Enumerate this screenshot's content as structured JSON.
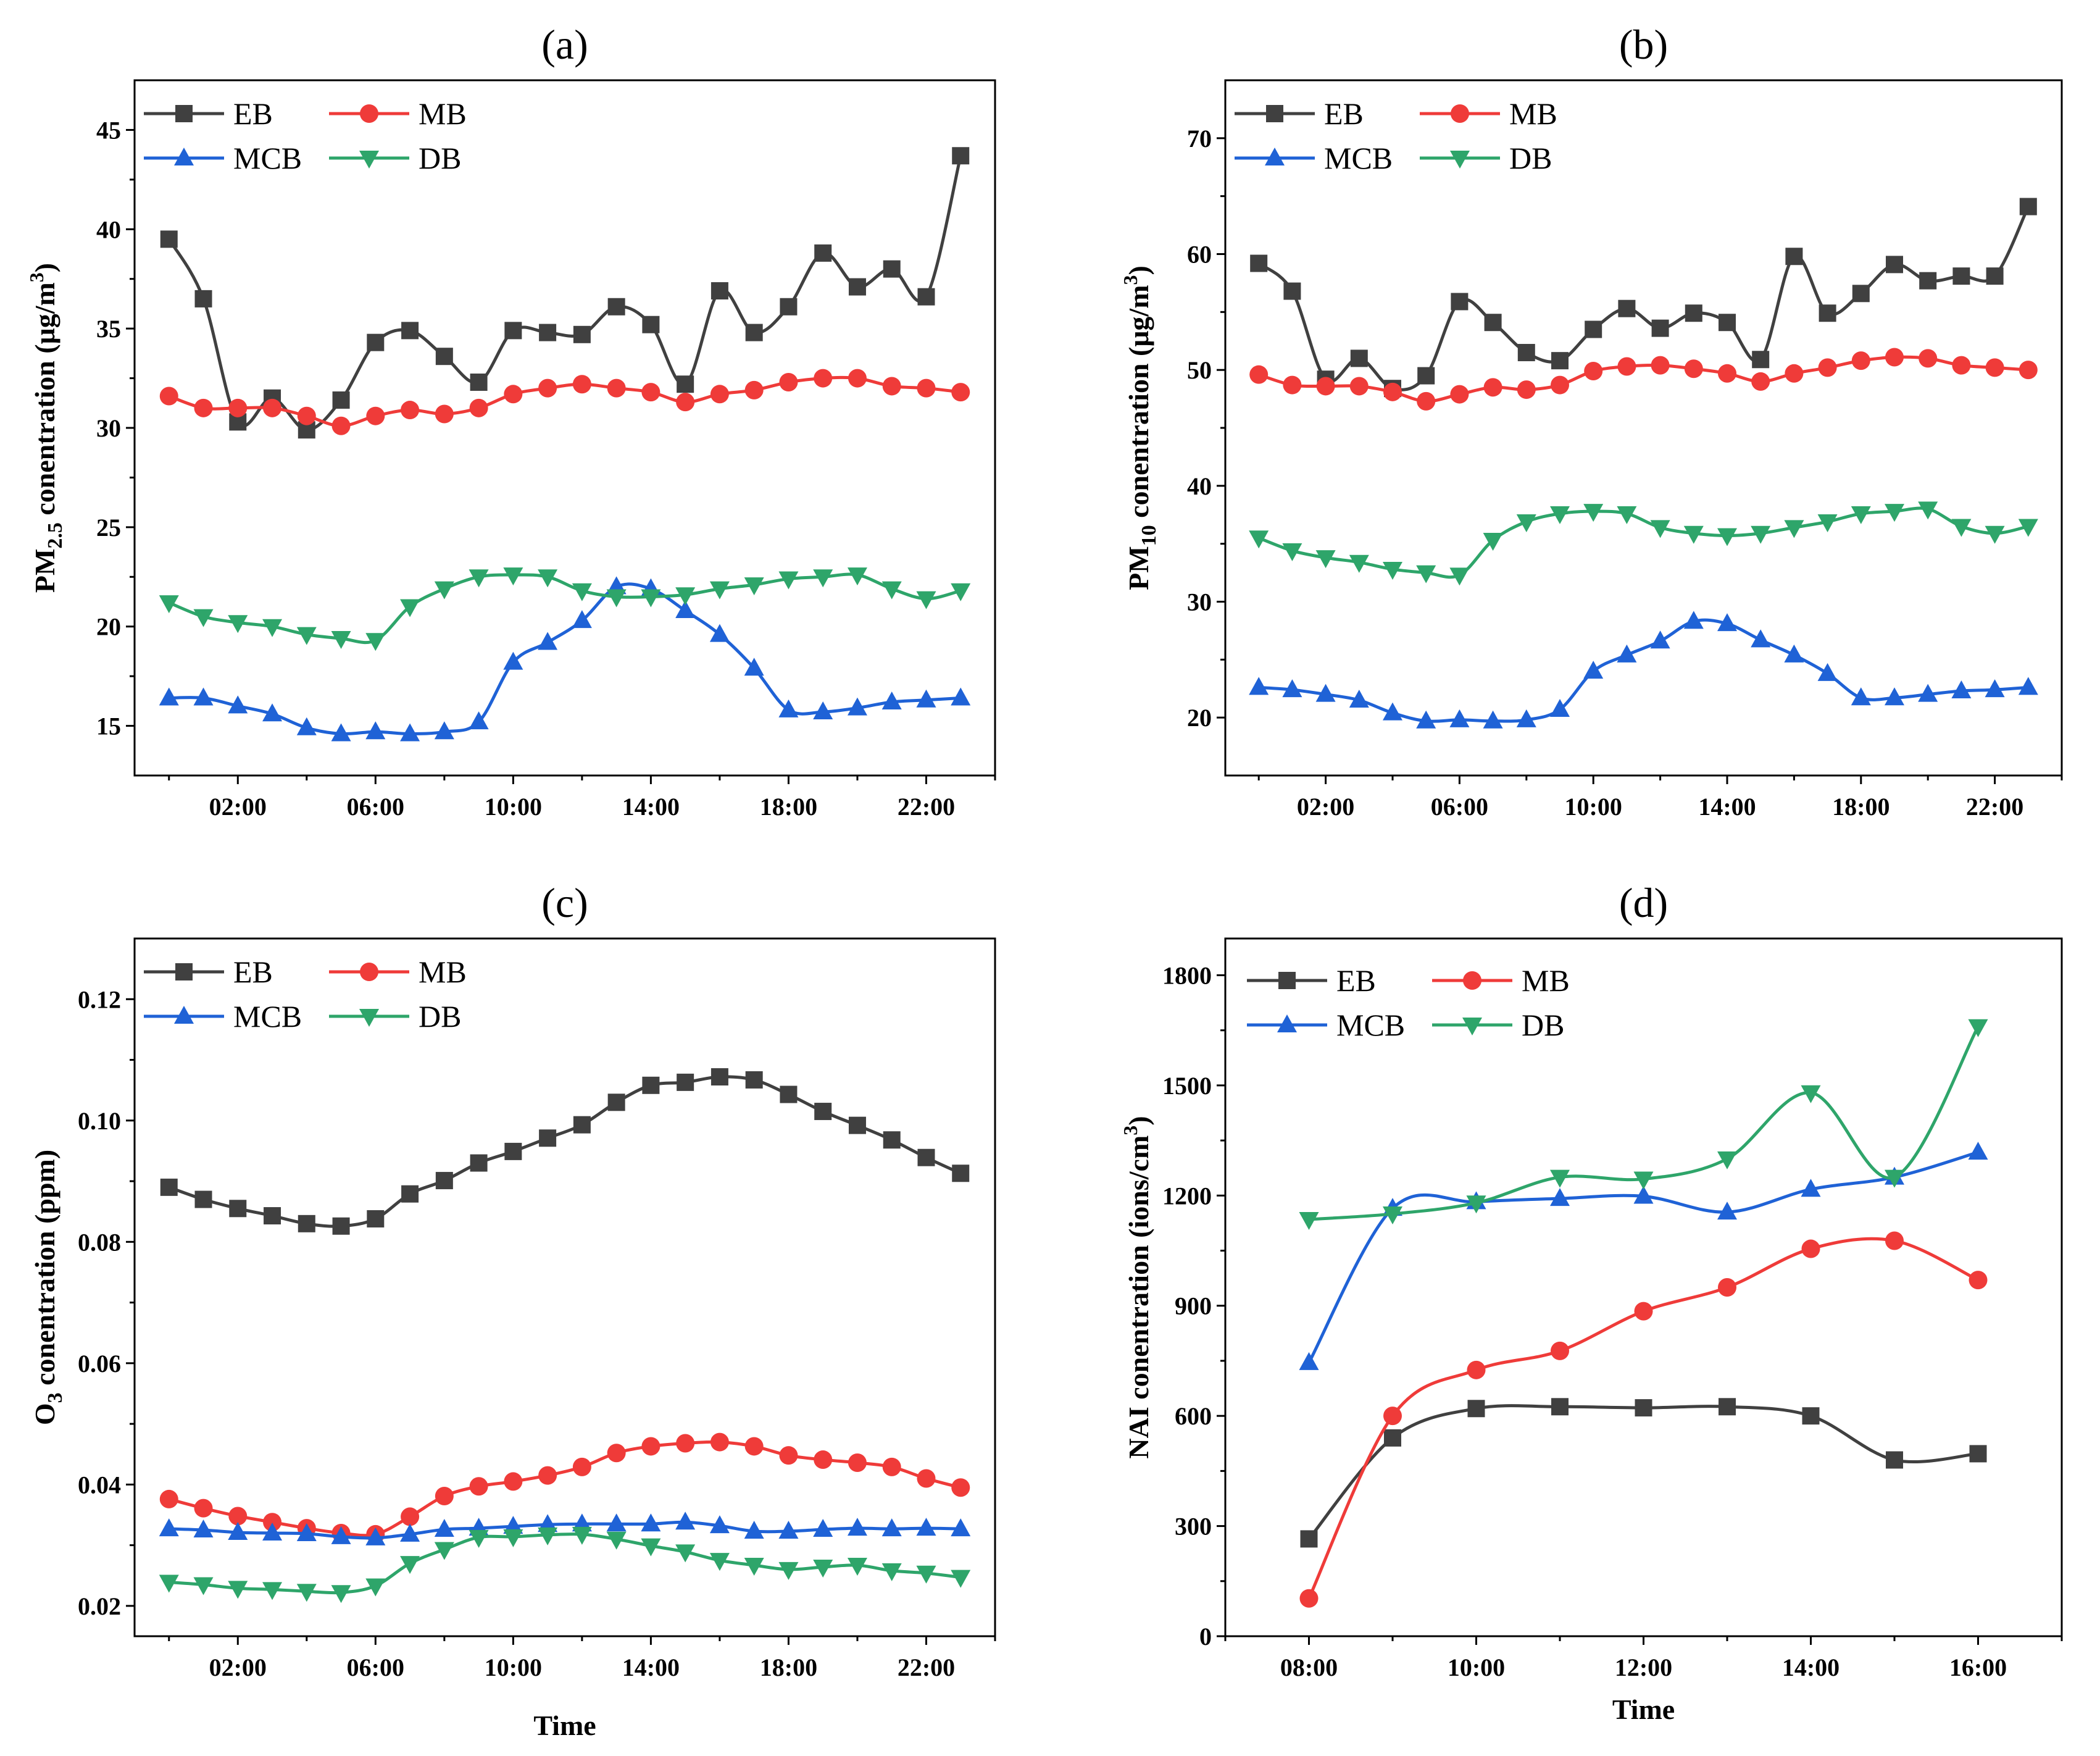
{
  "colors": {
    "EB": "#404040",
    "MB": "#ef3b39",
    "MCB": "#1f62d6",
    "DB": "#2ea56a"
  },
  "chart_data": [
    {
      "type": "line",
      "title": "(a)",
      "xlabel": "",
      "ylabel": {
        "pre": "PM",
        "sub": "2.5",
        "mid": " conentration (μg/m",
        "sup": "3",
        "post": ")"
      },
      "ylim": [
        12.5,
        47.5
      ],
      "yticks": [
        15,
        20,
        25,
        30,
        35,
        40,
        45
      ],
      "xlim": [
        -1,
        24
      ],
      "xticks": [
        2,
        6,
        10,
        14,
        18,
        22
      ],
      "xtick_labels": [
        "02:00",
        "06:00",
        "10:00",
        "14:00",
        "18:00",
        "22:00"
      ],
      "x": [
        0,
        1,
        2,
        3,
        4,
        5,
        6,
        7,
        8,
        9,
        10,
        11,
        12,
        13,
        14,
        15,
        16,
        17,
        18,
        19,
        20,
        21,
        22,
        23
      ],
      "series": [
        {
          "name": "EB",
          "values": [
            39.5,
            36.5,
            30.3,
            31.5,
            29.9,
            31.4,
            34.3,
            34.9,
            33.6,
            32.3,
            34.9,
            34.8,
            34.7,
            36.1,
            35.2,
            32.2,
            36.9,
            34.8,
            36.1,
            38.8,
            37.1,
            38.0,
            36.6,
            43.7
          ]
        },
        {
          "name": "MB",
          "values": [
            31.6,
            31.0,
            31.0,
            31.0,
            30.6,
            30.1,
            30.6,
            30.9,
            30.7,
            31.0,
            31.7,
            32.0,
            32.2,
            32.0,
            31.8,
            31.3,
            31.7,
            31.9,
            32.3,
            32.5,
            32.5,
            32.1,
            32.0,
            31.8
          ]
        },
        {
          "name": "MCB",
          "values": [
            16.4,
            16.4,
            16.0,
            15.6,
            14.9,
            14.6,
            14.7,
            14.6,
            14.7,
            15.2,
            18.2,
            19.2,
            20.3,
            22.0,
            21.9,
            20.8,
            19.6,
            17.9,
            15.8,
            15.7,
            15.9,
            16.2,
            16.3,
            16.4
          ]
        },
        {
          "name": "DB",
          "values": [
            21.2,
            20.5,
            20.2,
            20.0,
            19.6,
            19.4,
            19.3,
            21.0,
            21.9,
            22.5,
            22.6,
            22.5,
            21.8,
            21.5,
            21.5,
            21.6,
            21.9,
            22.1,
            22.4,
            22.5,
            22.6,
            21.9,
            21.4,
            21.8
          ]
        }
      ]
    },
    {
      "type": "line",
      "title": "(b)",
      "xlabel": "",
      "ylabel": {
        "pre": "PM",
        "sub": "10",
        "mid": " conentration (μg/m",
        "sup": "3",
        "post": ")"
      },
      "ylim": [
        15,
        75
      ],
      "yticks": [
        20,
        30,
        40,
        50,
        60,
        70
      ],
      "xlim": [
        -1,
        24
      ],
      "xticks": [
        2,
        6,
        10,
        14,
        18,
        22
      ],
      "xtick_labels": [
        "02:00",
        "06:00",
        "10:00",
        "14:00",
        "18:00",
        "22:00"
      ],
      "x": [
        0,
        1,
        2,
        3,
        4,
        5,
        6,
        7,
        8,
        9,
        10,
        11,
        12,
        13,
        14,
        15,
        16,
        17,
        18,
        19,
        20,
        21,
        22,
        23
      ],
      "series": [
        {
          "name": "EB",
          "values": [
            59.2,
            56.8,
            49.2,
            51.0,
            48.4,
            49.5,
            55.9,
            54.1,
            51.5,
            50.8,
            53.5,
            55.3,
            53.6,
            54.9,
            54.1,
            50.9,
            59.8,
            54.9,
            56.6,
            59.1,
            57.7,
            58.1,
            58.1,
            64.1
          ]
        },
        {
          "name": "MB",
          "values": [
            49.6,
            48.7,
            48.6,
            48.6,
            48.1,
            47.3,
            47.9,
            48.5,
            48.3,
            48.7,
            49.9,
            50.3,
            50.4,
            50.1,
            49.7,
            49.0,
            49.7,
            50.2,
            50.8,
            51.1,
            51.0,
            50.4,
            50.2,
            50.0
          ]
        },
        {
          "name": "MCB",
          "values": [
            22.6,
            22.4,
            22.0,
            21.5,
            20.4,
            19.7,
            19.8,
            19.7,
            19.8,
            20.7,
            24.0,
            25.4,
            26.6,
            28.3,
            28.1,
            26.7,
            25.4,
            23.8,
            21.7,
            21.7,
            22.0,
            22.3,
            22.4,
            22.6
          ]
        },
        {
          "name": "DB",
          "values": [
            35.5,
            34.4,
            33.8,
            33.4,
            32.8,
            32.5,
            32.3,
            35.3,
            36.9,
            37.6,
            37.8,
            37.6,
            36.4,
            35.9,
            35.7,
            35.9,
            36.4,
            36.9,
            37.6,
            37.8,
            38.0,
            36.5,
            35.9,
            36.5
          ]
        }
      ]
    },
    {
      "type": "line",
      "title": "(c)",
      "xlabel": "Time",
      "ylabel": {
        "pre": "O",
        "sub": "3",
        "mid": " conentration (ppm)",
        "sup": "",
        "post": ""
      },
      "ylim": [
        0.015,
        0.13
      ],
      "yticks": [
        0.02,
        0.04,
        0.06,
        0.08,
        0.1,
        0.12
      ],
      "ytick_labels": [
        "0.02",
        "0.04",
        "0.06",
        "0.08",
        "0.10",
        "0.12"
      ],
      "xlim": [
        -1,
        24
      ],
      "xticks": [
        2,
        6,
        10,
        14,
        18,
        22
      ],
      "xtick_labels": [
        "02:00",
        "06:00",
        "10:00",
        "14:00",
        "18:00",
        "22:00"
      ],
      "x": [
        0,
        1,
        2,
        3,
        4,
        5,
        6,
        7,
        8,
        9,
        10,
        11,
        12,
        13,
        14,
        15,
        16,
        17,
        18,
        19,
        20,
        21,
        22,
        23
      ],
      "series": [
        {
          "name": "EB",
          "values": [
            0.089,
            0.087,
            0.0855,
            0.0843,
            0.083,
            0.0826,
            0.0838,
            0.0879,
            0.0901,
            0.093,
            0.0949,
            0.0971,
            0.0993,
            0.103,
            0.1058,
            0.1063,
            0.1072,
            0.1067,
            0.1043,
            0.1015,
            0.0992,
            0.0968,
            0.0939,
            0.0913
          ]
        },
        {
          "name": "MB",
          "values": [
            0.0376,
            0.0361,
            0.0348,
            0.0338,
            0.0328,
            0.032,
            0.0318,
            0.0347,
            0.0381,
            0.0397,
            0.0405,
            0.0415,
            0.0429,
            0.0452,
            0.0463,
            0.0468,
            0.047,
            0.0463,
            0.0448,
            0.0441,
            0.0436,
            0.0429,
            0.041,
            0.0395
          ]
        },
        {
          "name": "MCB",
          "values": [
            0.0327,
            0.0325,
            0.0321,
            0.032,
            0.0319,
            0.0314,
            0.0312,
            0.0318,
            0.0326,
            0.0328,
            0.0331,
            0.0334,
            0.0335,
            0.0335,
            0.0335,
            0.0338,
            0.0332,
            0.0323,
            0.0323,
            0.0326,
            0.0328,
            0.0327,
            0.0328,
            0.0327
          ]
        },
        {
          "name": "DB",
          "values": [
            0.0239,
            0.0235,
            0.0229,
            0.0227,
            0.0224,
            0.0222,
            0.0233,
            0.027,
            0.0293,
            0.0313,
            0.0314,
            0.0317,
            0.0318,
            0.031,
            0.0299,
            0.0289,
            0.0275,
            0.0267,
            0.026,
            0.0264,
            0.0267,
            0.0258,
            0.0254,
            0.0247
          ]
        }
      ]
    },
    {
      "type": "line",
      "title": "(d)",
      "xlabel": "Time",
      "ylabel": {
        "pre": "NAI conentration (ions/cm",
        "sub": "",
        "mid": "",
        "sup": "3",
        "post": ")"
      },
      "ylim": [
        0,
        1900
      ],
      "yticks": [
        0,
        300,
        600,
        900,
        1200,
        1500,
        1800
      ],
      "xlim": [
        7,
        17
      ],
      "xticks": [
        8,
        10,
        12,
        14,
        16
      ],
      "xtick_labels": [
        "08:00",
        "10:00",
        "12:00",
        "14:00",
        "16:00"
      ],
      "x": [
        8,
        9,
        10,
        11,
        12,
        13,
        14,
        15,
        16
      ],
      "series": [
        {
          "name": "EB",
          "values": [
            265,
            540,
            620,
            625,
            622,
            625,
            600,
            480,
            497
          ]
        },
        {
          "name": "MB",
          "values": [
            103,
            600,
            725,
            777,
            885,
            950,
            1055,
            1077,
            970
          ]
        },
        {
          "name": "MCB",
          "values": [
            745,
            1165,
            1183,
            1192,
            1198,
            1155,
            1217,
            1250,
            1318
          ]
        },
        {
          "name": "DB",
          "values": [
            1135,
            1150,
            1180,
            1250,
            1245,
            1300,
            1480,
            1250,
            1660
          ]
        }
      ]
    }
  ]
}
